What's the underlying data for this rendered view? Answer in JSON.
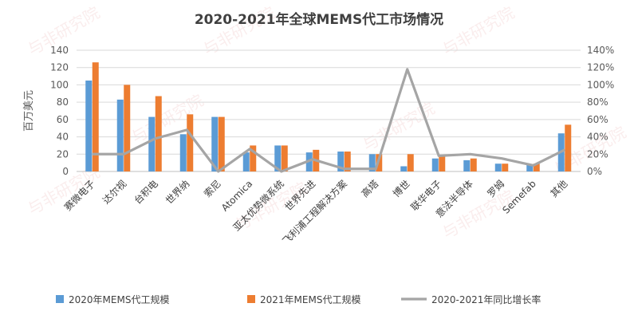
{
  "watermark": "与非研究院",
  "chart_data": {
    "type": "bar",
    "title": "2020-2021年全球MEMS代工市场情况",
    "ylabel": "百万美元",
    "xlabel": "",
    "categories": [
      "赛微电子",
      "达尔视",
      "台积电",
      "世界纳",
      "索尼",
      "Atomica",
      "亚太优势微系统",
      "世界先进",
      "飞利浦工程解决方案",
      "高塔",
      "博世",
      "联华电子",
      "意法半导体",
      "罗姆",
      "Semefab",
      "其他"
    ],
    "series": [
      {
        "name": "2020年MEMS代工规模",
        "axis": "left",
        "kind": "bar",
        "color": "#5b9bd5",
        "values": [
          105,
          83,
          63,
          43,
          63,
          22,
          30,
          22,
          23,
          20,
          6,
          15,
          13,
          9,
          8,
          44
        ]
      },
      {
        "name": "2021年MEMS代工规模",
        "axis": "left",
        "kind": "bar",
        "color": "#ed7d31",
        "values": [
          126,
          100,
          87,
          66,
          63,
          30,
          30,
          25,
          23,
          20,
          20,
          18,
          15,
          9,
          9,
          54
        ]
      },
      {
        "name": "2020-2021年同比增长率",
        "axis": "right",
        "kind": "line",
        "color": "#a5a5a5",
        "values": [
          0.2,
          0.2,
          0.38,
          0.48,
          0.0,
          0.26,
          0.0,
          0.14,
          0.03,
          0.03,
          1.18,
          0.18,
          0.2,
          0.15,
          0.07,
          0.25
        ]
      }
    ],
    "y_left": {
      "min": 0,
      "max": 140,
      "step": 20,
      "ticks": [
        "0",
        "20",
        "40",
        "60",
        "80",
        "100",
        "120",
        "140"
      ]
    },
    "y_right": {
      "min": 0,
      "max": 1.4,
      "step": 0.2,
      "ticks": [
        "0%",
        "20%",
        "40%",
        "60%",
        "80%",
        "100%",
        "120%",
        "140%"
      ]
    },
    "grid": true,
    "legend_position": "bottom"
  }
}
